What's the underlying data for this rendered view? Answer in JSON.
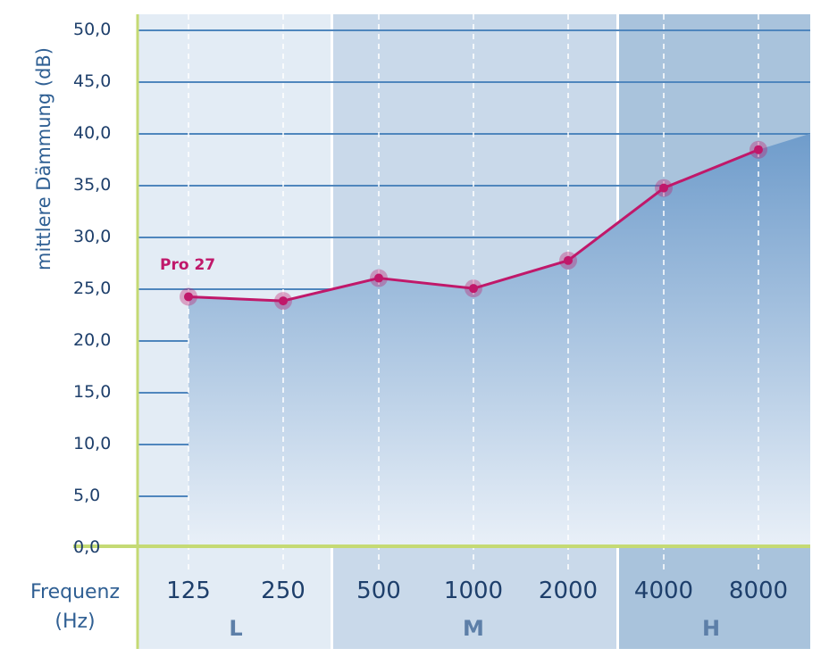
{
  "chart_data": {
    "type": "area",
    "ylabel": "mittlere Dämmung (dB)",
    "xlabel_line1": "Frequenz",
    "xlabel_line2": "(Hz)",
    "categories": [
      "125",
      "250",
      "500",
      "1000",
      "2000",
      "4000",
      "8000"
    ],
    "y_ticks": [
      "0,0",
      "5,0",
      "10,0",
      "15,0",
      "20,0",
      "25,0",
      "30,0",
      "35,0",
      "40,0",
      "45,0",
      "50,0"
    ],
    "ylim": [
      0,
      50
    ],
    "grid": true,
    "series": [
      {
        "name": "Pro 27",
        "values": [
          24.1,
          23.7,
          25.9,
          24.9,
          27.6,
          34.6,
          38.3
        ]
      }
    ],
    "bands": [
      {
        "label": "L",
        "categories": [
          "125",
          "250"
        ]
      },
      {
        "label": "M",
        "categories": [
          "500",
          "1000",
          "2000"
        ]
      },
      {
        "label": "H",
        "categories": [
          "4000",
          "8000"
        ]
      }
    ]
  },
  "colors": {
    "band_L": "#e3ecf5",
    "band_M": "#c9d9ea",
    "band_H": "#a9c3dc",
    "grid": "#4f86bd",
    "axis": "#c5da74",
    "line": "#c0186a",
    "area_top": "#6f9ccb",
    "area_bottom": "#e9f0f8"
  }
}
